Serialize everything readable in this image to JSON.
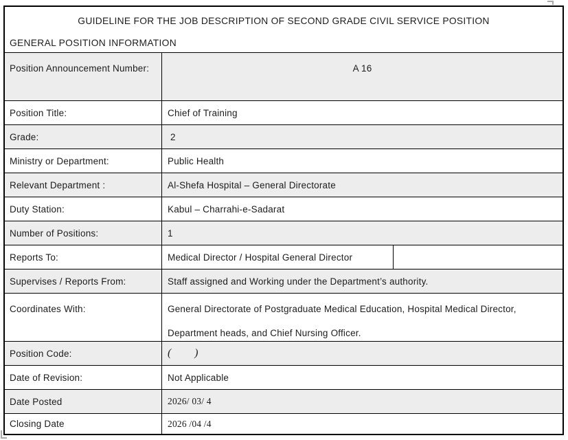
{
  "header": {
    "title": "GUIDELINE FOR THE JOB DESCRIPTION OF SECOND GRADE CIVIL SERVICE POSITION",
    "section": "GENERAL POSITION INFORMATION"
  },
  "rows": [
    {
      "label": "Position Announcement Number:",
      "value": "A 16"
    },
    {
      "label": "Position Title:",
      "value": "Chief of Training"
    },
    {
      "label": "Grade:",
      "value": " 2"
    },
    {
      "label": "Ministry or Department:",
      "value": "Public Health"
    },
    {
      "label": "Relevant Department :",
      "value": "Al-Shefa Hospital – General Directorate"
    },
    {
      "label": "Duty Station:",
      "value": "Kabul – Charrahi-e-Sadarat"
    },
    {
      "label": "Number of Positions:",
      "value": "1"
    },
    {
      "label": "Reports To:",
      "value": "Medical Director / Hospital General Director"
    },
    {
      "label": "Supervises / Reports From:",
      "value": "Staff assigned and Working under the Department’s authority."
    },
    {
      "label": "Coordinates With:",
      "value": "General Directorate of Postgraduate Medical Education, Hospital Medical Director, Department heads, and Chief Nursing Officer."
    },
    {
      "label": "Position Code:",
      "value": "(        )"
    },
    {
      "label": "Date of Revision:",
      "value": "Not Applicable"
    },
    {
      "label": "Date Posted",
      "value": "2026/ 03/ 4"
    },
    {
      "label": "Closing Date",
      "value": "2026 /04 /4"
    }
  ],
  "colors": {
    "shaded_row": "#ededed",
    "border": "#000000",
    "text": "#1c1c1c"
  }
}
